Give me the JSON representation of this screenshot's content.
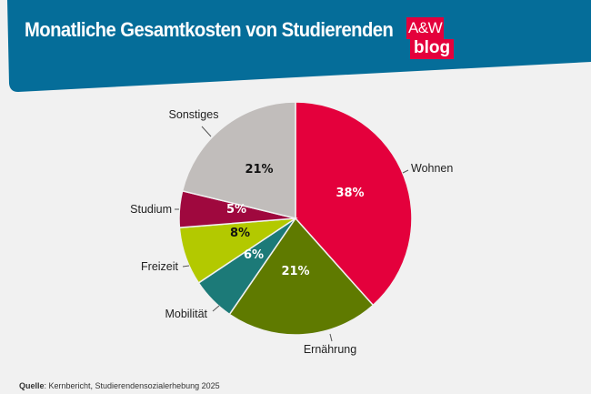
{
  "header": {
    "title": "Monatliche Gesamtkosten von Studierenden",
    "logo_line1": "A&W",
    "logo_line2": "blog",
    "banner_color": "#056d99",
    "logo_color": "#e4003c"
  },
  "chart_data": {
    "type": "pie",
    "start": "top",
    "direction": "clockwise",
    "slices": [
      {
        "name": "Wohnen",
        "value": 38,
        "label": "38%",
        "color": "#e4003c",
        "text_color": "#ffffff"
      },
      {
        "name": "Ernährung",
        "value": 21,
        "label": "21%",
        "color": "#5f7a00",
        "text_color": "#ffffff"
      },
      {
        "name": "Mobilität",
        "value": 6,
        "label": "6%",
        "color": "#1c7a78",
        "text_color": "#ffffff"
      },
      {
        "name": "Freizeit",
        "value": 8,
        "label": "8%",
        "color": "#b3c900",
        "text_color": "#111111"
      },
      {
        "name": "Studium",
        "value": 5,
        "label": "5%",
        "color": "#9f083e",
        "text_color": "#ffffff"
      },
      {
        "name": "Sonstiges",
        "value": 21,
        "label": "21%",
        "color": "#c1bdbb",
        "text_color": "#111111"
      }
    ]
  },
  "source": {
    "label": "Quelle",
    "text": ": Kernbericht, Studierendensozialerhebung 2025"
  }
}
